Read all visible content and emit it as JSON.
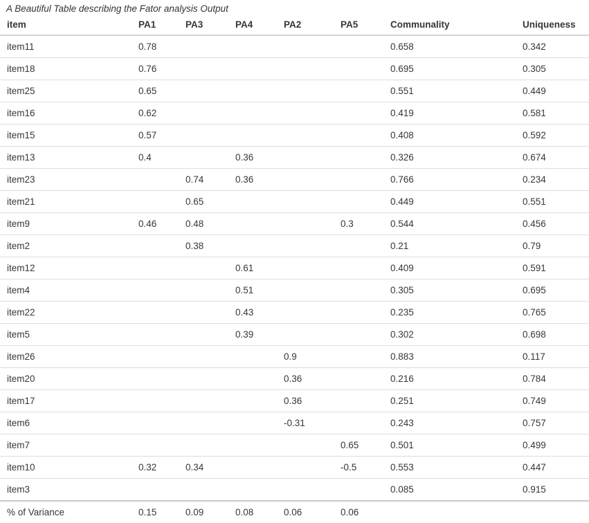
{
  "title": "A Beautiful Table describing the Fator analysis Output",
  "chart_data": {
    "type": "table",
    "columns": [
      "item",
      "PA1",
      "PA3",
      "PA4",
      "PA2",
      "PA5",
      "Communality",
      "Uniqueness"
    ],
    "rows": [
      [
        "item11",
        "0.78",
        "",
        "",
        "",
        "",
        "0.658",
        "0.342"
      ],
      [
        "item18",
        "0.76",
        "",
        "",
        "",
        "",
        "0.695",
        "0.305"
      ],
      [
        "item25",
        "0.65",
        "",
        "",
        "",
        "",
        "0.551",
        "0.449"
      ],
      [
        "item16",
        "0.62",
        "",
        "",
        "",
        "",
        "0.419",
        "0.581"
      ],
      [
        "item15",
        "0.57",
        "",
        "",
        "",
        "",
        "0.408",
        "0.592"
      ],
      [
        "item13",
        "0.4",
        "",
        "0.36",
        "",
        "",
        "0.326",
        "0.674"
      ],
      [
        "item23",
        "",
        "0.74",
        "0.36",
        "",
        "",
        "0.766",
        "0.234"
      ],
      [
        "item21",
        "",
        "0.65",
        "",
        "",
        "",
        "0.449",
        "0.551"
      ],
      [
        "item9",
        "0.46",
        "0.48",
        "",
        "",
        "0.3",
        "0.544",
        "0.456"
      ],
      [
        "item2",
        "",
        "0.38",
        "",
        "",
        "",
        "0.21",
        "0.79"
      ],
      [
        "item12",
        "",
        "",
        "0.61",
        "",
        "",
        "0.409",
        "0.591"
      ],
      [
        "item4",
        "",
        "",
        "0.51",
        "",
        "",
        "0.305",
        "0.695"
      ],
      [
        "item22",
        "",
        "",
        "0.43",
        "",
        "",
        "0.235",
        "0.765"
      ],
      [
        "item5",
        "",
        "",
        "0.39",
        "",
        "",
        "0.302",
        "0.698"
      ],
      [
        "item26",
        "",
        "",
        "",
        "0.9",
        "",
        "0.883",
        "0.117"
      ],
      [
        "item20",
        "",
        "",
        "",
        "0.36",
        "",
        "0.216",
        "0.784"
      ],
      [
        "item17",
        "",
        "",
        "",
        "0.36",
        "",
        "0.251",
        "0.749"
      ],
      [
        "item6",
        "",
        "",
        "",
        "-0.31",
        "",
        "0.243",
        "0.757"
      ],
      [
        "item7",
        "",
        "",
        "",
        "",
        "0.65",
        "0.501",
        "0.499"
      ],
      [
        "item10",
        "0.32",
        "0.34",
        "",
        "",
        "-0.5",
        "0.553",
        "0.447"
      ],
      [
        "item3",
        "",
        "",
        "",
        "",
        "",
        "0.085",
        "0.915"
      ]
    ],
    "footer_row": [
      "% of Variance",
      "0.15",
      "0.09",
      "0.08",
      "0.06",
      "0.06",
      "",
      ""
    ]
  }
}
